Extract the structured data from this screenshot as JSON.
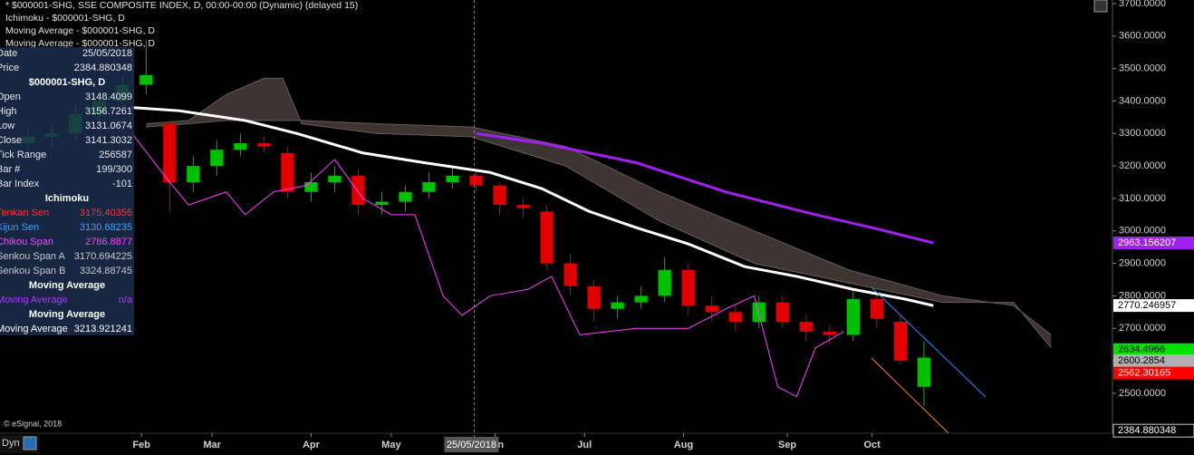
{
  "header": {
    "lines": [
      "* $000001-SHG, SSE COMPOSITE INDEX, D, 00:00-00:00 (Dynamic) (delayed 15)",
      "Ichimoku - $000001-SHG, D",
      "Moving Average - $000001-SHG, D",
      "Moving Average - $000001-SHG, D"
    ]
  },
  "data_window": {
    "rows": [
      {
        "label": "Date",
        "value": "25/05/2018"
      },
      {
        "label": "Price",
        "value": "2384.880348"
      },
      {
        "heading": "$000001-SHG, D"
      },
      {
        "label": "Open",
        "value": "3148.4099"
      },
      {
        "label": "High",
        "value": "3156.7261"
      },
      {
        "label": "Low",
        "value": "3131.0674"
      },
      {
        "label": "Close",
        "value": "3141.3032"
      },
      {
        "label": "Tick Range",
        "value": "256587"
      },
      {
        "label": "Bar #",
        "value": "199/300"
      },
      {
        "label": "Bar Index",
        "value": "-101"
      },
      {
        "heading": "Ichimoku"
      },
      {
        "label": "Tenkan Sen",
        "value": "3175.40355",
        "color": "#ff3030"
      },
      {
        "label": "Kijun Sen",
        "value": "3130.68235",
        "color": "#3fa0ff"
      },
      {
        "label": "Chikou Span",
        "value": "2786.8877",
        "color": "#ff40ff"
      },
      {
        "label": "Senkou Span A",
        "value": "3170.694225",
        "color": "#c8c8c8"
      },
      {
        "label": "Senkou Span B",
        "value": "3324.88745",
        "color": "#c8c8c8"
      },
      {
        "heading": "Moving Average"
      },
      {
        "label": "Moving Average",
        "value": "n/a",
        "color": "#b030ff"
      },
      {
        "heading": "Moving Average"
      },
      {
        "label": "Moving Average",
        "value": "3213.921241",
        "color": "#ffffff"
      }
    ]
  },
  "copyright": "© eSignal, 2018",
  "footer_button": "Dyn",
  "chart_data": {
    "type": "candlestick",
    "x": [
      6,
      11,
      16,
      21,
      26,
      31,
      36,
      41,
      46,
      51,
      56,
      61,
      66,
      71,
      76,
      81,
      86,
      91,
      96,
      101,
      106,
      111,
      116,
      121,
      126,
      131,
      136,
      141,
      146,
      151,
      156,
      161,
      166,
      171,
      176,
      181,
      186,
      191,
      196
    ],
    "open": [
      3270,
      3290,
      3300,
      3360,
      3400,
      3450,
      3330,
      3150,
      3200,
      3250,
      3270,
      3240,
      3120,
      3150,
      3170,
      3080,
      3090,
      3120,
      3150,
      3170,
      3140,
      3080,
      3060,
      2900,
      2830,
      2760,
      2780,
      2800,
      2880,
      2770,
      2750,
      2720,
      2780,
      2720,
      2690,
      2680,
      2790,
      2720,
      2520
    ],
    "high": [
      3320,
      3330,
      3390,
      3430,
      3480,
      3587,
      3340,
      3230,
      3280,
      3300,
      3290,
      3260,
      3180,
      3200,
      3190,
      3120,
      3140,
      3180,
      3200,
      3190,
      3150,
      3100,
      3080,
      2930,
      2850,
      2800,
      2830,
      2920,
      2900,
      2800,
      2770,
      2800,
      2800,
      2740,
      2710,
      2820,
      2800,
      2740,
      2660
    ],
    "low": [
      3250,
      3260,
      3280,
      3330,
      3380,
      3420,
      3060,
      3120,
      3170,
      3230,
      3240,
      3100,
      3090,
      3120,
      3050,
      3050,
      3060,
      3100,
      3130,
      3120,
      3050,
      3040,
      2880,
      2800,
      2720,
      2730,
      2760,
      2780,
      2740,
      2720,
      2690,
      2700,
      2700,
      2660,
      2650,
      2660,
      2700,
      2590,
      2460
    ],
    "close": [
      3290,
      3300,
      3360,
      3400,
      3450,
      3480,
      3150,
      3200,
      3250,
      3270,
      3260,
      3120,
      3150,
      3170,
      3080,
      3090,
      3120,
      3150,
      3170,
      3140,
      3080,
      3070,
      2900,
      2830,
      2760,
      2780,
      2800,
      2880,
      2770,
      2750,
      2720,
      2780,
      2720,
      2690,
      2680,
      2790,
      2730,
      2600,
      2610
    ],
    "up_color": "#00c000",
    "down_color": "#e00000",
    "xlim": [
      0,
      236
    ],
    "ylim": [
      2377,
      3711
    ],
    "yticks": [
      {
        "value": 2500,
        "label": "2500.0000"
      },
      {
        "value": 2600,
        "label": "2600.0000"
      },
      {
        "value": 2700,
        "label": "2700.0000"
      },
      {
        "value": 2800,
        "label": "2800.0000"
      },
      {
        "value": 2900,
        "label": "2900.0000"
      },
      {
        "value": 3000,
        "label": "3000.0000"
      },
      {
        "value": 3100,
        "label": "3100.0000"
      },
      {
        "value": 3200,
        "label": "3200.0000"
      },
      {
        "value": 3300,
        "label": "3300.0000"
      },
      {
        "value": 3400,
        "label": "3400.0000"
      },
      {
        "value": 3500,
        "label": "3500.0000"
      },
      {
        "value": 3600,
        "label": "3600.0000"
      },
      {
        "value": 3700,
        "label": "3700.0000"
      }
    ],
    "xticks": [
      {
        "value": 30,
        "label": "Feb"
      },
      {
        "value": 45,
        "label": "Mar"
      },
      {
        "value": 66,
        "label": "Apr"
      },
      {
        "value": 83,
        "label": "May"
      },
      {
        "value": 105,
        "label": "Jun"
      },
      {
        "value": 124,
        "label": "Jul"
      },
      {
        "value": 145,
        "label": "Aug"
      },
      {
        "value": 167,
        "label": "Sep"
      },
      {
        "value": 185,
        "label": "Oct"
      }
    ],
    "cloud": {
      "color": "#3e3434",
      "edge": "#6a5a5a",
      "x": [
        31,
        40,
        48,
        56,
        60,
        64,
        80,
        100,
        120,
        140,
        160,
        180,
        200,
        215,
        223
      ],
      "span_a": [
        3330,
        3340,
        3420,
        3470,
        3470,
        3330,
        3300,
        3290,
        3200,
        3030,
        2900,
        2840,
        2780,
        2780,
        2640
      ],
      "span_b": [
        3320,
        3330,
        3340,
        3340,
        3340,
        3340,
        3330,
        3320,
        3260,
        3120,
        3000,
        2880,
        2800,
        2770,
        2680
      ]
    },
    "lines": [
      {
        "color": "#ff40ff",
        "width": 1,
        "x": [
          28,
          36,
          40,
          48,
          52,
          58,
          65,
          71,
          77,
          83,
          88,
          94,
          98,
          104,
          112,
          117,
          123,
          135,
          146,
          154,
          160,
          165,
          169,
          173,
          179
        ],
        "values": [
          3300,
          3150,
          3080,
          3120,
          3050,
          3120,
          3140,
          3220,
          3100,
          3050,
          3050,
          2800,
          2740,
          2800,
          2820,
          2860,
          2680,
          2700,
          2700,
          2760,
          2800,
          2520,
          2490,
          2640,
          2690
        ]
      },
      {
        "color": "#ffffff",
        "width": 3,
        "x": [
          28,
          38,
          52,
          63,
          77,
          90,
          104,
          115,
          125,
          135,
          146,
          158,
          169,
          181,
          192,
          198
        ],
        "values": [
          3380,
          3370,
          3340,
          3300,
          3240,
          3210,
          3180,
          3130,
          3060,
          3010,
          2960,
          2890,
          2860,
          2820,
          2790,
          2770
        ]
      },
      {
        "color": "#a020f0",
        "width": 3,
        "x": [
          101,
          115,
          135,
          154,
          173,
          185,
          198
        ],
        "values": [
          3300,
          3270,
          3210,
          3120,
          3050,
          3010,
          2963
        ]
      }
    ],
    "price_labels": [
      {
        "value": 2963.156207,
        "color": "#a020f0",
        "text_color": "#ffffff"
      },
      {
        "value": 2770.246957,
        "color": "#ffffff",
        "text_color": "#000000"
      },
      {
        "value": 2634.4966,
        "color": "#00e000",
        "text_color": "#000000"
      },
      {
        "value": 2600.2854,
        "color": "#b0b0b0",
        "text_color": "#000000"
      },
      {
        "value": 2562.30165,
        "color": "#ff0000",
        "text_color": "#ffffff"
      },
      {
        "value": 2384.880348,
        "color": "#000000",
        "text_color": "#ffffff"
      }
    ],
    "cursor": {
      "x": 100.6,
      "label": "25/05/2018"
    }
  }
}
